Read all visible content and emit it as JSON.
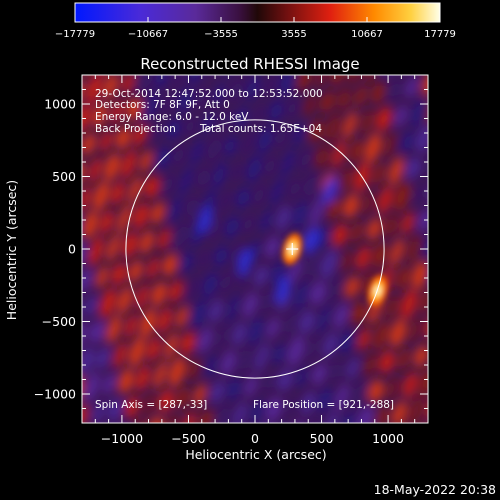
{
  "chart_data": {
    "type": "heatmap",
    "title": "Reconstructed RHESSI Image",
    "xlabel": "Heliocentric X (arcsec)",
    "ylabel": "Heliocentric Y (arcsec)",
    "xlim": [
      -1300,
      1300
    ],
    "ylim": [
      -1200,
      1200
    ],
    "x_ticks": [
      -1000,
      -500,
      0,
      500,
      1000
    ],
    "x_tick_labels": [
      "−1000",
      "−500",
      "0",
      "500",
      "1000"
    ],
    "y_ticks": [
      -1000,
      -500,
      0,
      500,
      1000
    ],
    "y_tick_labels": [
      "−1000",
      "−500",
      "0",
      "500",
      "1000"
    ],
    "colorbar": {
      "min": -17779,
      "max": 17779,
      "ticks": [
        -17779,
        -10667,
        -3555,
        3555,
        10667,
        17779
      ],
      "tick_labels": [
        "−17779",
        "−10667",
        "−3555",
        "3555",
        "10667",
        "17779"
      ]
    },
    "solar_disk": {
      "center": [
        0,
        0
      ],
      "radius": 970
    },
    "flare_marker": [
      280,
      0
    ],
    "sources": [
      {
        "x": 280,
        "y": 0,
        "peak": 17000
      },
      {
        "x": 921,
        "y": -288,
        "peak": 17779
      }
    ],
    "annotations": {
      "time_range": "29-Oct-2014 12:47:52.000 to 12:53:52.000",
      "detectors": "Detectors: 7F 8F 9F, Att 0",
      "energy": "Energy Range: 6.0 - 12.0 keV",
      "method": "Back Projection",
      "counts": "Total counts: 1.65E+04",
      "spin_axis": "Spin Axis = [287,-33]",
      "flare_position": "Flare Position = [921,-288]"
    }
  },
  "footer": {
    "date": "18-May-2022 20:38"
  }
}
